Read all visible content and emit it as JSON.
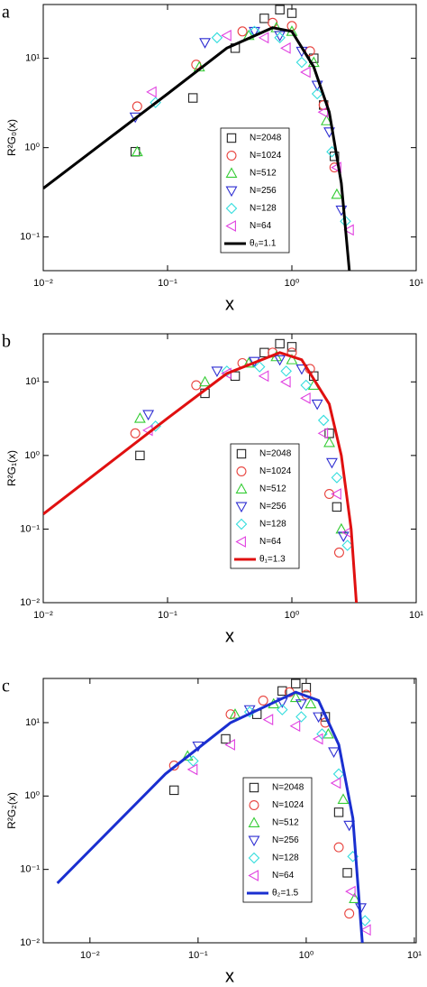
{
  "chart_data": [
    {
      "type": "scatter",
      "label": "a",
      "x_label": "x",
      "y_label": "R²G₀(x)",
      "xscale": "log",
      "yscale": "log",
      "xlim": [
        0.01,
        10
      ],
      "ylim": [
        0.042,
        40
      ],
      "xticks": [
        {
          "value": 0.01,
          "label": "10⁻²"
        },
        {
          "value": 0.1,
          "label": "10⁻¹"
        },
        {
          "value": 1,
          "label": "10⁰"
        },
        {
          "value": 10,
          "label": "10¹"
        }
      ],
      "yticks": [
        {
          "value": 0.1,
          "label": "10⁻¹"
        },
        {
          "value": 1,
          "label": "10⁰"
        },
        {
          "value": 10,
          "label": "10¹"
        }
      ],
      "series": [
        {
          "name": "N=2048",
          "color": "#222222",
          "marker": "square",
          "x": [
            0.055,
            0.16,
            0.35,
            0.6,
            0.8,
            1.0,
            1.5,
            1.8,
            2.2
          ],
          "values": [
            0.9,
            3.6,
            13,
            28,
            35,
            32,
            10,
            3,
            0.8
          ]
        },
        {
          "name": "N=1024",
          "color": "#e8413c",
          "marker": "circle",
          "x": [
            0.057,
            0.17,
            0.4,
            0.7,
            1.0,
            1.4,
            1.8,
            2.2
          ],
          "values": [
            2.9,
            8.5,
            20,
            25,
            23,
            12,
            3,
            0.6
          ]
        },
        {
          "name": "N=512",
          "color": "#33cc33",
          "marker": "triangle-up",
          "x": [
            0.057,
            0.18,
            0.45,
            0.75,
            1.0,
            1.5,
            1.9,
            2.3
          ],
          "values": [
            0.9,
            8,
            18,
            22,
            20,
            9,
            2,
            0.3
          ]
        },
        {
          "name": "N=256",
          "color": "#2d2dd2",
          "marker": "triangle-down",
          "x": [
            0.055,
            0.2,
            0.5,
            0.8,
            1.2,
            1.6,
            2.0,
            2.5
          ],
          "values": [
            2.2,
            15,
            20,
            18,
            12,
            5,
            1.5,
            0.2
          ]
        },
        {
          "name": "N=128",
          "color": "#33dddd",
          "marker": "diamond",
          "x": [
            0.08,
            0.25,
            0.5,
            0.8,
            1.2,
            1.6,
            2.1,
            2.7
          ],
          "values": [
            3.2,
            17,
            20,
            17,
            9,
            4,
            0.9,
            0.15
          ]
        },
        {
          "name": "N=64",
          "color": "#e040e0",
          "marker": "triangle-left",
          "x": [
            0.075,
            0.3,
            0.6,
            0.9,
            1.3,
            1.8,
            2.3,
            2.9
          ],
          "values": [
            4.2,
            18,
            17,
            13,
            7,
            2.5,
            0.6,
            0.12
          ]
        },
        {
          "name": "θ₀=1.1",
          "color": "#000000",
          "marker": "line",
          "x": [
            0.01,
            0.1,
            0.3,
            0.7,
            1.0,
            1.5,
            2.0,
            2.5,
            2.9
          ],
          "values": [
            0.35,
            4,
            13,
            22,
            20,
            8,
            2.5,
            0.4,
            0.042
          ]
        }
      ]
    },
    {
      "type": "scatter",
      "label": "b",
      "x_label": "x",
      "y_label": "R²G₁(x)",
      "xscale": "log",
      "yscale": "log",
      "xlim": [
        0.01,
        10
      ],
      "ylim": [
        0.01,
        45
      ],
      "xticks": [
        {
          "value": 0.01,
          "label": "10⁻²"
        },
        {
          "value": 0.1,
          "label": "10⁻¹"
        },
        {
          "value": 1,
          "label": "10⁰"
        },
        {
          "value": 10,
          "label": "10¹"
        }
      ],
      "yticks": [
        {
          "value": 0.01,
          "label": "10⁻²"
        },
        {
          "value": 0.1,
          "label": "10⁻¹"
        },
        {
          "value": 1,
          "label": "10⁰"
        },
        {
          "value": 10,
          "label": "10¹"
        }
      ],
      "series": [
        {
          "name": "N=2048",
          "color": "#222222",
          "marker": "square",
          "x": [
            0.06,
            0.2,
            0.35,
            0.6,
            0.8,
            1.0,
            1.5,
            2.0,
            2.3
          ],
          "values": [
            1.0,
            7,
            12,
            25,
            33,
            30,
            12,
            2,
            0.2
          ]
        },
        {
          "name": "N=1024",
          "color": "#e8413c",
          "marker": "circle",
          "x": [
            0.055,
            0.17,
            0.4,
            0.7,
            1.0,
            1.4,
            2.0,
            2.4
          ],
          "values": [
            2,
            9,
            18,
            25,
            25,
            15,
            0.3,
            0.048
          ]
        },
        {
          "name": "N=512",
          "color": "#33cc33",
          "marker": "triangle-up",
          "x": [
            0.06,
            0.2,
            0.45,
            0.75,
            1.0,
            1.5,
            2.0,
            2.5
          ],
          "values": [
            3.2,
            10,
            18,
            22,
            20,
            9,
            1.5,
            0.1
          ]
        },
        {
          "name": "N=256",
          "color": "#2d2dd2",
          "marker": "triangle-down",
          "x": [
            0.07,
            0.25,
            0.5,
            0.8,
            1.2,
            1.6,
            2.1,
            2.6
          ],
          "values": [
            3.6,
            14,
            19,
            20,
            15,
            5,
            0.8,
            0.08
          ]
        },
        {
          "name": "N=128",
          "color": "#33dddd",
          "marker": "diamond",
          "x": [
            0.08,
            0.3,
            0.55,
            0.9,
            1.3,
            1.8,
            2.3,
            2.8
          ],
          "values": [
            2.5,
            14,
            16,
            14,
            9,
            3,
            0.5,
            0.06
          ]
        },
        {
          "name": "N=64",
          "color": "#e040e0",
          "marker": "triangle-left",
          "x": [
            0.07,
            0.3,
            0.6,
            0.9,
            1.3,
            1.8,
            2.3,
            2.8
          ],
          "values": [
            2.2,
            13,
            12,
            10,
            6,
            2,
            0.3,
            0.09
          ]
        },
        {
          "name": "θ₁=1.3",
          "color": "#e01010",
          "marker": "line",
          "x": [
            0.01,
            0.1,
            0.3,
            0.8,
            1.2,
            2.0,
            2.5,
            3.0,
            3.3
          ],
          "values": [
            0.16,
            3.2,
            13,
            25,
            20,
            5,
            1,
            0.1,
            0.01
          ]
        }
      ]
    },
    {
      "type": "scatter",
      "label": "c",
      "x_label": "x",
      "y_label": "R²G₂(x)",
      "xscale": "log",
      "yscale": "log",
      "xlim": [
        0.0037,
        10.4
      ],
      "ylim": [
        0.01,
        40
      ],
      "xticks": [
        {
          "value": 0.01,
          "label": "10⁻²"
        },
        {
          "value": 0.1,
          "label": "10⁻¹"
        },
        {
          "value": 1,
          "label": "10⁰"
        },
        {
          "value": 10,
          "label": "10¹"
        }
      ],
      "yticks": [
        {
          "value": 0.01,
          "label": "10⁻²"
        },
        {
          "value": 0.1,
          "label": "10⁻¹"
        },
        {
          "value": 1,
          "label": "10⁰"
        },
        {
          "value": 10,
          "label": "10¹"
        }
      ],
      "series": [
        {
          "name": "N=2048",
          "color": "#222222",
          "marker": "square",
          "x": [
            0.06,
            0.18,
            0.35,
            0.6,
            0.8,
            1.0,
            1.5,
            2.0,
            2.4
          ],
          "values": [
            1.2,
            6,
            13,
            27,
            34,
            30,
            12,
            0.6,
            0.09
          ]
        },
        {
          "name": "N=1024",
          "color": "#e8413c",
          "marker": "circle",
          "x": [
            0.06,
            0.2,
            0.4,
            0.7,
            1.0,
            1.5,
            2.0,
            2.5
          ],
          "values": [
            2.6,
            13,
            20,
            26,
            24,
            10,
            0.2,
            0.025
          ]
        },
        {
          "name": "N=512",
          "color": "#33cc33",
          "marker": "triangle-up",
          "x": [
            0.08,
            0.22,
            0.5,
            0.8,
            1.1,
            1.6,
            2.2,
            2.8
          ],
          "values": [
            3.5,
            13,
            18,
            22,
            18,
            7,
            0.9,
            0.04
          ]
        },
        {
          "name": "N=256",
          "color": "#2d2dd2",
          "marker": "triangle-down",
          "x": [
            0.1,
            0.3,
            0.6,
            0.9,
            1.3,
            1.8,
            2.5,
            3.2
          ],
          "values": [
            4.8,
            15,
            19,
            18,
            12,
            4,
            0.4,
            0.03
          ]
        },
        {
          "name": "N=128",
          "color": "#33dddd",
          "marker": "diamond",
          "x": [
            0.09,
            0.3,
            0.6,
            0.9,
            1.4,
            2.0,
            2.7,
            3.5
          ],
          "values": [
            3,
            14,
            15,
            12,
            7,
            2,
            0.15,
            0.02
          ]
        },
        {
          "name": "N=64",
          "color": "#e040e0",
          "marker": "triangle-left",
          "x": [
            0.09,
            0.2,
            0.45,
            0.8,
            1.3,
            1.9,
            2.6,
            3.6
          ],
          "values": [
            2.3,
            5,
            11,
            9,
            6,
            1.5,
            0.05,
            0.015
          ]
        },
        {
          "name": "θ₂=1.5",
          "color": "#1a2fd0",
          "marker": "line",
          "x": [
            0.005,
            0.05,
            0.2,
            0.8,
            1.3,
            2.0,
            2.7,
            3.3
          ],
          "values": [
            0.065,
            2,
            10,
            26,
            20,
            5,
            0.5,
            0.01
          ]
        }
      ]
    }
  ]
}
